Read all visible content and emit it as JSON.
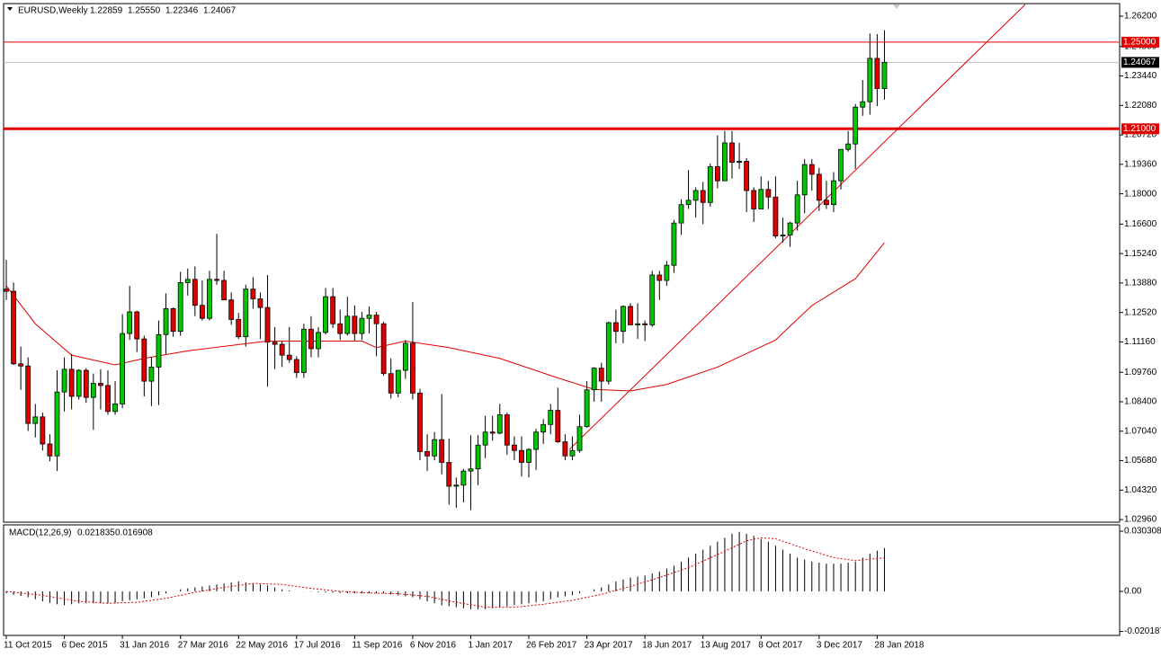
{
  "chart_data": {
    "type": "candlestick",
    "title": "EURUSD,Weekly",
    "header_ohlc": [
      "1.22859",
      "1.25550",
      "1.22346",
      "1.24067"
    ],
    "categories": [
      "11 Oct 2015",
      null,
      null,
      null,
      null,
      null,
      null,
      null,
      "6 Dec 2015",
      null,
      null,
      null,
      null,
      null,
      null,
      null,
      "31 Jan 2016",
      null,
      null,
      null,
      null,
      null,
      null,
      null,
      "27 Mar 2016",
      null,
      null,
      null,
      null,
      null,
      null,
      null,
      "22 May 2016",
      null,
      null,
      null,
      null,
      null,
      null,
      null,
      "17 Jul 2016",
      null,
      null,
      null,
      null,
      null,
      null,
      null,
      "11 Sep 2016",
      null,
      null,
      null,
      null,
      null,
      null,
      null,
      "6 Nov 2016",
      null,
      null,
      null,
      null,
      null,
      null,
      null,
      "1 Jan 2017",
      null,
      null,
      null,
      null,
      null,
      null,
      null,
      "26 Feb 2017",
      null,
      null,
      null,
      null,
      null,
      null,
      null,
      "23 Apr 2017",
      null,
      null,
      null,
      null,
      null,
      null,
      null,
      "18 Jun 2017",
      null,
      null,
      null,
      null,
      null,
      null,
      null,
      "13 Aug 2017",
      null,
      null,
      null,
      null,
      null,
      null,
      null,
      "8 Oct 2017",
      null,
      null,
      null,
      null,
      null,
      null,
      null,
      "3 Dec 2017",
      null,
      null,
      null,
      null,
      null,
      null,
      null,
      "28 Jan 2018",
      null
    ],
    "candles": [
      [
        1.136,
        1.1495,
        1.131,
        1.135
      ],
      [
        1.135,
        1.139,
        1.101,
        1.1015
      ],
      [
        1.1015,
        1.1095,
        1.0895,
        1.1005
      ],
      [
        1.1005,
        1.1045,
        1.0705,
        1.074
      ],
      [
        1.074,
        1.083,
        1.0675,
        1.077
      ],
      [
        1.077,
        1.079,
        1.0615,
        1.0645
      ],
      [
        1.0645,
        1.069,
        1.0565,
        1.059
      ],
      [
        1.059,
        1.0985,
        1.052,
        1.0885
      ],
      [
        1.0885,
        1.1045,
        1.0795,
        1.099
      ],
      [
        1.099,
        1.106,
        1.0805,
        1.0865
      ],
      [
        1.0865,
        1.099,
        1.085,
        1.0985
      ],
      [
        1.0985,
        1.0995,
        1.0835,
        1.086
      ],
      [
        1.086,
        1.097,
        1.071,
        1.0925
      ],
      [
        1.0925,
        1.099,
        1.0805,
        1.0915
      ],
      [
        1.0915,
        1.0985,
        1.078,
        1.0795
      ],
      [
        1.0795,
        1.0935,
        1.078,
        1.083
      ],
      [
        1.083,
        1.1245,
        1.081,
        1.1155
      ],
      [
        1.1155,
        1.1375,
        1.1125,
        1.1255
      ],
      [
        1.1255,
        1.126,
        1.107,
        1.113
      ],
      [
        1.113,
        1.1145,
        1.0865,
        1.0935
      ],
      [
        1.0935,
        1.1045,
        1.082,
        1.1
      ],
      [
        1.1,
        1.1215,
        1.0825,
        1.115
      ],
      [
        1.115,
        1.134,
        1.106,
        1.127
      ],
      [
        1.127,
        1.1275,
        1.114,
        1.1165
      ],
      [
        1.1165,
        1.144,
        1.1145,
        1.139
      ],
      [
        1.139,
        1.1455,
        1.133,
        1.1405
      ],
      [
        1.1405,
        1.1465,
        1.1235,
        1.1285
      ],
      [
        1.1285,
        1.14,
        1.1215,
        1.1225
      ],
      [
        1.1225,
        1.1445,
        1.1215,
        1.1405
      ],
      [
        1.1405,
        1.1615,
        1.138,
        1.14
      ],
      [
        1.14,
        1.1445,
        1.131,
        1.131
      ],
      [
        1.131,
        1.1345,
        1.1195,
        1.122
      ],
      [
        1.122,
        1.125,
        1.113,
        1.114
      ],
      [
        1.114,
        1.138,
        1.1095,
        1.136
      ],
      [
        1.136,
        1.1415,
        1.127,
        1.1315
      ],
      [
        1.1315,
        1.1345,
        1.113,
        1.1275
      ],
      [
        1.1275,
        1.1425,
        1.091,
        1.1115
      ],
      [
        1.1115,
        1.1185,
        1.099,
        1.1105
      ],
      [
        1.1105,
        1.112,
        1.1,
        1.1055
      ],
      [
        1.1055,
        1.1185,
        1.102,
        1.1035
      ],
      [
        1.1035,
        1.105,
        1.095,
        1.0975
      ],
      [
        1.0975,
        1.12,
        1.095,
        1.1175
      ],
      [
        1.1175,
        1.1235,
        1.1045,
        1.1085
      ],
      [
        1.1085,
        1.1185,
        1.1045,
        1.116
      ],
      [
        1.116,
        1.1365,
        1.115,
        1.1325
      ],
      [
        1.1325,
        1.1365,
        1.118,
        1.12
      ],
      [
        1.12,
        1.1265,
        1.1125,
        1.1155
      ],
      [
        1.1155,
        1.1325,
        1.1145,
        1.1235
      ],
      [
        1.1235,
        1.1285,
        1.112,
        1.1155
      ],
      [
        1.1155,
        1.1255,
        1.1125,
        1.1225
      ],
      [
        1.1225,
        1.128,
        1.1155,
        1.124
      ],
      [
        1.124,
        1.1255,
        1.105,
        1.12
      ],
      [
        1.12,
        1.121,
        1.096,
        1.097
      ],
      [
        1.097,
        1.104,
        1.0855,
        1.088
      ],
      [
        1.088,
        1.0985,
        1.086,
        1.0985
      ],
      [
        1.0985,
        1.1125,
        1.0945,
        1.111
      ],
      [
        1.111,
        1.13,
        1.085,
        1.088
      ],
      [
        1.088,
        1.09,
        1.057,
        1.061
      ],
      [
        1.061,
        1.069,
        1.052,
        1.059
      ],
      [
        1.059,
        1.07,
        1.057,
        1.0665
      ],
      [
        1.0665,
        1.0875,
        1.0505,
        1.056
      ],
      [
        1.056,
        1.067,
        1.0365,
        1.045
      ],
      [
        1.045,
        1.049,
        1.035,
        1.0455
      ],
      [
        1.0455,
        1.053,
        1.0375,
        1.052
      ],
      [
        1.052,
        1.0685,
        1.034,
        1.053
      ],
      [
        1.053,
        1.0685,
        1.0455,
        1.064
      ],
      [
        1.064,
        1.0775,
        1.058,
        1.07
      ],
      [
        1.07,
        1.0775,
        1.066,
        1.0695
      ],
      [
        1.0695,
        1.083,
        1.069,
        1.078
      ],
      [
        1.078,
        1.079,
        1.0595,
        1.064
      ],
      [
        1.064,
        1.068,
        1.057,
        1.0615
      ],
      [
        1.0615,
        1.068,
        1.0495,
        1.056
      ],
      [
        1.056,
        1.0625,
        1.049,
        1.062
      ],
      [
        1.062,
        1.0715,
        1.0525,
        1.07
      ],
      [
        1.07,
        1.076,
        1.0645,
        1.0735
      ],
      [
        1.0735,
        1.083,
        1.069,
        1.08
      ],
      [
        1.08,
        1.0905,
        1.065,
        1.0655
      ],
      [
        1.0655,
        1.069,
        1.057,
        1.059
      ],
      [
        1.059,
        1.068,
        1.057,
        1.0615
      ],
      [
        1.0615,
        1.078,
        1.0605,
        1.0725
      ],
      [
        1.0725,
        1.0935,
        1.072,
        1.0895
      ],
      [
        1.0895,
        1.1,
        1.084,
        1.0995
      ],
      [
        1.0995,
        1.102,
        1.084,
        1.0935
      ],
      [
        1.0935,
        1.121,
        1.092,
        1.1205
      ],
      [
        1.1205,
        1.1265,
        1.111,
        1.1165
      ],
      [
        1.1165,
        1.1285,
        1.111,
        1.128
      ],
      [
        1.128,
        1.1295,
        1.1195,
        1.1195
      ],
      [
        1.1195,
        1.1295,
        1.113,
        1.12
      ],
      [
        1.12,
        1.1215,
        1.112,
        1.1195
      ],
      [
        1.1195,
        1.1445,
        1.1185,
        1.1425
      ],
      [
        1.1425,
        1.1445,
        1.131,
        1.14
      ],
      [
        1.14,
        1.149,
        1.1375,
        1.147
      ],
      [
        1.147,
        1.168,
        1.1435,
        1.1665
      ],
      [
        1.1665,
        1.1775,
        1.161,
        1.175
      ],
      [
        1.175,
        1.191,
        1.173,
        1.177
      ],
      [
        1.177,
        1.183,
        1.169,
        1.1815
      ],
      [
        1.1815,
        1.1855,
        1.166,
        1.176
      ],
      [
        1.176,
        1.194,
        1.174,
        1.1925
      ],
      [
        1.1925,
        1.207,
        1.1825,
        1.186
      ],
      [
        1.186,
        1.209,
        1.186,
        1.2035
      ],
      [
        1.2035,
        1.209,
        1.187,
        1.1945
      ],
      [
        1.1945,
        1.2035,
        1.1915,
        1.195
      ],
      [
        1.195,
        1.1965,
        1.1715,
        1.1815
      ],
      [
        1.1815,
        1.183,
        1.167,
        1.173
      ],
      [
        1.173,
        1.188,
        1.173,
        1.182
      ],
      [
        1.182,
        1.186,
        1.173,
        1.1785
      ],
      [
        1.1785,
        1.188,
        1.1595,
        1.1605
      ],
      [
        1.1605,
        1.169,
        1.1575,
        1.161
      ],
      [
        1.161,
        1.167,
        1.1555,
        1.1665
      ],
      [
        1.1665,
        1.186,
        1.163,
        1.1795
      ],
      [
        1.1795,
        1.196,
        1.171,
        1.1935
      ],
      [
        1.1935,
        1.196,
        1.1815,
        1.189
      ],
      [
        1.189,
        1.192,
        1.172,
        1.177
      ],
      [
        1.177,
        1.186,
        1.173,
        1.175
      ],
      [
        1.175,
        1.19,
        1.1715,
        1.186
      ],
      [
        1.186,
        1.2005,
        1.182,
        1.2005
      ],
      [
        1.2005,
        1.209,
        1.1995,
        1.203
      ],
      [
        1.203,
        1.2215,
        1.1915,
        1.22
      ],
      [
        1.22,
        1.2325,
        1.216,
        1.2225
      ],
      [
        1.2225,
        1.254,
        1.2165,
        1.2425
      ],
      [
        1.2425,
        1.2537,
        1.2205,
        1.2286
      ],
      [
        1.22859,
        1.2555,
        1.22346,
        1.24067
      ]
    ],
    "up_color": "#00c800",
    "down_color": "#e00000",
    "ylim": [
      1.0284,
      1.2678
    ],
    "yticks": [
      {
        "value": 1.262,
        "label": "1.26200"
      },
      {
        "value": 1.248,
        "label": "1.24800"
      },
      {
        "value": 1.2344,
        "label": "1.23440"
      },
      {
        "value": 1.2208,
        "label": "1.22080"
      },
      {
        "value": 1.2072,
        "label": "1.20720"
      },
      {
        "value": 1.1936,
        "label": "1.19360"
      },
      {
        "value": 1.18,
        "label": "1.18000"
      },
      {
        "value": 1.166,
        "label": "1.16600"
      },
      {
        "value": 1.1524,
        "label": "1.15240"
      },
      {
        "value": 1.1388,
        "label": "1.13880"
      },
      {
        "value": 1.1252,
        "label": "1.12520"
      },
      {
        "value": 1.1116,
        "label": "1.11160"
      },
      {
        "value": 1.0976,
        "label": "1.09760"
      },
      {
        "value": 1.084,
        "label": "1.08400"
      },
      {
        "value": 1.0704,
        "label": "1.07040"
      },
      {
        "value": 1.0568,
        "label": "1.05680"
      },
      {
        "value": 1.0432,
        "label": "1.04320"
      },
      {
        "value": 1.0296,
        "label": "1.02960"
      }
    ],
    "ma": {
      "color": "#e00000",
      "x": [
        0,
        4,
        9,
        15,
        19,
        25,
        31,
        36,
        49,
        51,
        55,
        61,
        68,
        76,
        81,
        86,
        91,
        98,
        106,
        111,
        117,
        121
      ],
      "values": [
        1.1375,
        1.12,
        1.1055,
        1.101,
        1.104,
        1.1075,
        1.11,
        1.112,
        1.112,
        1.109,
        1.112,
        1.109,
        1.104,
        1.095,
        1.0897,
        1.089,
        1.092,
        1.1,
        1.1125,
        1.1284,
        1.1408,
        1.1574
      ]
    },
    "trendline": {
      "color": "#e00000",
      "x": [
        77.6,
        140.4
      ],
      "values": [
        1.062,
        1.2674
      ]
    },
    "levels": [
      {
        "value": 1.25,
        "label": "1.25000",
        "color": "#e00000",
        "box": "#e00000",
        "style": "thin"
      },
      {
        "value": 1.24067,
        "label": "1.24067",
        "color": "#c0c0c0",
        "box": "#000000",
        "style": "thin"
      },
      {
        "value": 1.21,
        "label": "1.21000",
        "color": "#e00000",
        "box": "#e00000",
        "style": "thick"
      }
    ],
    "macd": {
      "title": "MACD(12,26,9)",
      "color": "#000000",
      "values": [
        -0.001,
        -0.0017,
        -0.0023,
        -0.003,
        -0.004,
        -0.005,
        -0.0058,
        -0.0065,
        -0.007,
        -0.0065,
        -0.006,
        -0.006,
        -0.006,
        -0.006,
        -0.006,
        -0.006,
        -0.005,
        -0.0045,
        -0.004,
        -0.0035,
        -0.003,
        -0.002,
        -0.001,
        0.0,
        0.001,
        0.0015,
        0.002,
        0.0025,
        0.003,
        0.0035,
        0.004,
        0.0045,
        0.005,
        0.0045,
        0.004,
        0.0035,
        0.003,
        0.002,
        0.001,
        0.0005,
        0.0,
        -0.0001,
        -0.0002,
        -0.0004,
        -0.0005,
        -0.0006,
        -0.0008,
        -0.0009,
        -0.001,
        -0.001,
        -0.001,
        -0.001,
        -0.001,
        -0.0015,
        -0.002,
        -0.0025,
        -0.003,
        -0.004,
        -0.005,
        -0.006,
        -0.007,
        -0.0075,
        -0.008,
        -0.0085,
        -0.009,
        -0.009,
        -0.009,
        -0.0085,
        -0.008,
        -0.0075,
        -0.007,
        -0.0065,
        -0.006,
        -0.0055,
        -0.005,
        -0.004,
        -0.003,
        -0.0025,
        -0.002,
        -0.001,
        0.0,
        0.001,
        0.002,
        0.0035,
        0.005,
        0.006,
        0.007,
        0.0075,
        0.008,
        0.009,
        0.01,
        0.0115,
        0.013,
        0.015,
        0.017,
        0.019,
        0.021,
        0.023,
        0.025,
        0.027,
        0.029,
        0.03,
        0.029,
        0.028,
        0.0265,
        0.025,
        0.023,
        0.021,
        0.019,
        0.017,
        0.016,
        0.015,
        0.0145,
        0.014,
        0.014,
        0.014,
        0.0145,
        0.015,
        0.017,
        0.019,
        0.0205,
        0.021835
      ],
      "signal": {
        "color": "#e00000",
        "x": [
          0,
          5,
          10,
          14,
          18,
          22,
          26,
          30,
          34,
          38,
          42,
          46,
          50,
          54,
          58,
          62,
          66,
          70,
          74,
          78,
          82,
          86,
          90,
          94,
          98,
          102,
          104,
          106,
          110,
          114,
          117,
          121
        ],
        "values": [
          0.0,
          -0.002,
          -0.005,
          -0.006,
          -0.0055,
          -0.0035,
          -0.0005,
          0.002,
          0.004,
          0.0035,
          0.0015,
          0.0,
          -0.0008,
          -0.0012,
          -0.0025,
          -0.0055,
          -0.008,
          -0.008,
          -0.0065,
          -0.0045,
          -0.0015,
          0.0025,
          0.007,
          0.012,
          0.0185,
          0.0255,
          0.027,
          0.0265,
          0.0215,
          0.017,
          0.0155,
          0.016908
        ]
      },
      "ylim": [
        -0.0222,
        0.0335
      ],
      "yticks": [
        0.030308,
        {
          "value": 0,
          "label": "0.00"
        },
        -0.020187
      ]
    }
  }
}
